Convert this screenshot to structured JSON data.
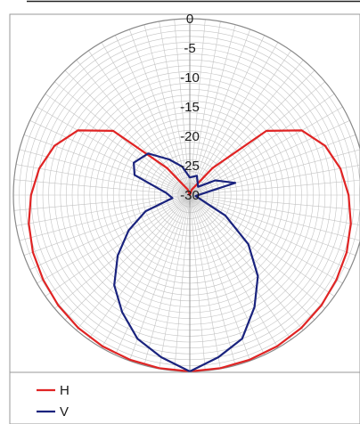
{
  "chart_data": {
    "type": "polar-line",
    "radial_ticks": [
      "0",
      "-5",
      "-10",
      "-15",
      "-20",
      "-25",
      "-30"
    ],
    "r_range": [
      -30,
      0
    ],
    "angle_step_deg": 5,
    "angle_convention": "degrees clockwise from top",
    "grid": true,
    "legend_position": "bottom-left",
    "series": [
      {
        "name": "H",
        "color": "#e02424",
        "points": [
          [
            0,
            -30
          ],
          [
            20,
            -29
          ],
          [
            40,
            -24
          ],
          [
            50,
            -13
          ],
          [
            60,
            -8
          ],
          [
            70,
            -5.5
          ],
          [
            80,
            -4
          ],
          [
            90,
            -3
          ],
          [
            100,
            -2.2
          ],
          [
            110,
            -1.6
          ],
          [
            120,
            -1.2
          ],
          [
            130,
            -0.8
          ],
          [
            140,
            -0.5
          ],
          [
            150,
            -0.3
          ],
          [
            160,
            -0.2
          ],
          [
            170,
            -0.1
          ],
          [
            180,
            0
          ],
          [
            190,
            -0.1
          ],
          [
            200,
            -0.2
          ],
          [
            210,
            -0.3
          ],
          [
            220,
            -0.5
          ],
          [
            230,
            -0.8
          ],
          [
            240,
            -1.2
          ],
          [
            250,
            -1.6
          ],
          [
            260,
            -2.2
          ],
          [
            270,
            -3
          ],
          [
            280,
            -4
          ],
          [
            290,
            -5.5
          ],
          [
            300,
            -8
          ],
          [
            310,
            -13
          ],
          [
            320,
            -24
          ],
          [
            340,
            -29
          ],
          [
            360,
            -30
          ]
        ]
      },
      {
        "name": "V",
        "color": "#1a237e",
        "points": [
          [
            0,
            -27
          ],
          [
            20,
            -26.5
          ],
          [
            45,
            -28
          ],
          [
            60,
            -25
          ],
          [
            75,
            -22
          ],
          [
            85,
            -28
          ],
          [
            100,
            -29
          ],
          [
            120,
            -23
          ],
          [
            130,
            -17
          ],
          [
            140,
            -12
          ],
          [
            150,
            -8
          ],
          [
            160,
            -4
          ],
          [
            170,
            -2
          ],
          [
            180,
            0
          ],
          [
            190,
            -2
          ],
          [
            200,
            -4
          ],
          [
            210,
            -7
          ],
          [
            220,
            -10
          ],
          [
            230,
            -14
          ],
          [
            240,
            -18
          ],
          [
            250,
            -22
          ],
          [
            260,
            -27
          ],
          [
            275,
            -26
          ],
          [
            290,
            -20
          ],
          [
            300,
            -19
          ],
          [
            315,
            -20
          ],
          [
            330,
            -23
          ],
          [
            345,
            -25
          ],
          [
            360,
            -27
          ]
        ]
      }
    ]
  }
}
